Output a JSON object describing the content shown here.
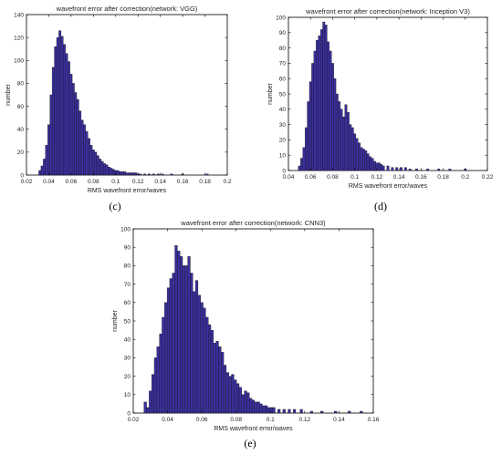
{
  "chart_data": [
    {
      "type": "bar",
      "title": "wavefront error after correction(network: VGG)",
      "xlabel": "RMS wavefront error/waves",
      "ylabel": "number",
      "caption": "(c)",
      "xlim": [
        0.02,
        0.2
      ],
      "ylim": [
        0,
        140
      ],
      "xticks": [
        "0.02",
        "0.04",
        "0.06",
        "0.08",
        "0.1",
        "0.12",
        "0.14",
        "0.16",
        "0.18",
        "0.2"
      ],
      "yticks": [
        "0",
        "20",
        "40",
        "60",
        "80",
        "100",
        "120",
        "140"
      ],
      "bar_color": "#3a2f9c",
      "bins": {
        "x": [
          0.032,
          0.034,
          0.036,
          0.038,
          0.04,
          0.042,
          0.044,
          0.046,
          0.048,
          0.05,
          0.052,
          0.054,
          0.056,
          0.058,
          0.06,
          0.062,
          0.064,
          0.066,
          0.068,
          0.07,
          0.072,
          0.074,
          0.076,
          0.078,
          0.08,
          0.082,
          0.084,
          0.086,
          0.088,
          0.09,
          0.092,
          0.094,
          0.096,
          0.098,
          0.1,
          0.102,
          0.104,
          0.106,
          0.108,
          0.11,
          0.112,
          0.114,
          0.116,
          0.118,
          0.12,
          0.122,
          0.126,
          0.13,
          0.134,
          0.138,
          0.142,
          0.15,
          0.16,
          0.182
        ],
        "values": [
          4,
          8,
          14,
          26,
          44,
          70,
          94,
          112,
          120,
          126,
          121,
          114,
          106,
          99,
          88,
          80,
          72,
          66,
          56,
          48,
          44,
          38,
          32,
          26,
          22,
          20,
          17,
          14,
          12,
          10,
          9,
          7,
          6,
          5,
          4,
          4,
          3,
          3,
          3,
          2,
          2,
          2,
          2,
          2,
          1,
          1,
          1,
          1,
          1,
          1,
          1,
          1,
          1,
          1
        ]
      }
    },
    {
      "type": "bar",
      "title": "wavefront error after correction(network: Inception V3)",
      "xlabel": "RMS wavefront error/waves",
      "ylabel": "number",
      "caption": "(d)",
      "xlim": [
        0.04,
        0.22
      ],
      "ylim": [
        0,
        100
      ],
      "xticks": [
        "0.04",
        "0.06",
        "0.08",
        "0.1",
        "0.12",
        "0.14",
        "0.16",
        "0.18",
        "0.2",
        "0.22"
      ],
      "yticks": [
        "0",
        "10",
        "20",
        "30",
        "40",
        "50",
        "60",
        "70",
        "80",
        "90",
        "100"
      ],
      "bar_color": "#3a2f9c",
      "bins": {
        "x": [
          0.05,
          0.052,
          0.054,
          0.056,
          0.058,
          0.06,
          0.062,
          0.064,
          0.066,
          0.068,
          0.07,
          0.072,
          0.074,
          0.076,
          0.078,
          0.08,
          0.082,
          0.084,
          0.086,
          0.088,
          0.09,
          0.092,
          0.094,
          0.096,
          0.098,
          0.1,
          0.102,
          0.104,
          0.106,
          0.108,
          0.11,
          0.112,
          0.114,
          0.116,
          0.118,
          0.12,
          0.122,
          0.124,
          0.126,
          0.13,
          0.134,
          0.138,
          0.142,
          0.146,
          0.15,
          0.156,
          0.166,
          0.176,
          0.186,
          0.2
        ],
        "values": [
          3,
          8,
          15,
          28,
          45,
          58,
          70,
          78,
          85,
          88,
          92,
          97,
          95,
          84,
          78,
          70,
          60,
          50,
          45,
          40,
          35,
          43,
          38,
          30,
          28,
          24,
          21,
          18,
          15,
          14,
          13,
          11,
          9,
          8,
          6,
          5,
          5,
          4,
          3,
          3,
          2,
          2,
          2,
          2,
          1,
          1,
          1,
          1,
          1,
          1
        ]
      }
    },
    {
      "type": "bar",
      "title": "wavefront error after correction(network: CNN3)",
      "xlabel": "RMS wavefront error/waves",
      "ylabel": "number",
      "caption": "(e)",
      "xlim": [
        0.02,
        0.16
      ],
      "ylim": [
        0,
        100
      ],
      "xticks": [
        "0.02",
        "0.04",
        "0.06",
        "0.08",
        "0.1",
        "0.12",
        "0.14",
        "0.16"
      ],
      "yticks": [
        "0",
        "10",
        "20",
        "30",
        "40",
        "50",
        "60",
        "70",
        "80",
        "90",
        "100"
      ],
      "bar_color": "#3a2f9c",
      "bins": {
        "x": [
          0.027,
          0.0285,
          0.03,
          0.0315,
          0.033,
          0.0345,
          0.036,
          0.0375,
          0.039,
          0.0405,
          0.042,
          0.0435,
          0.045,
          0.0465,
          0.048,
          0.0495,
          0.051,
          0.0525,
          0.054,
          0.0555,
          0.057,
          0.0585,
          0.06,
          0.0615,
          0.063,
          0.0645,
          0.066,
          0.0675,
          0.069,
          0.0705,
          0.072,
          0.0735,
          0.075,
          0.0765,
          0.078,
          0.0795,
          0.081,
          0.0825,
          0.084,
          0.0855,
          0.087,
          0.0885,
          0.09,
          0.0915,
          0.093,
          0.0945,
          0.096,
          0.0975,
          0.099,
          0.1005,
          0.102,
          0.105,
          0.108,
          0.111,
          0.114,
          0.118,
          0.124,
          0.13,
          0.138,
          0.146,
          0.153
        ],
        "values": [
          6,
          3,
          12,
          21,
          30,
          36,
          43,
          52,
          60,
          68,
          73,
          76,
          91,
          88,
          85,
          80,
          80,
          85,
          76,
          66,
          72,
          64,
          60,
          57,
          52,
          48,
          45,
          38,
          39,
          36,
          33,
          26,
          22,
          20,
          21,
          18,
          16,
          14,
          10,
          12,
          11,
          8,
          7,
          6,
          6,
          5,
          4,
          4,
          3,
          3,
          3,
          2,
          2,
          2,
          2,
          2,
          1,
          1,
          1,
          1,
          1
        ]
      }
    }
  ]
}
